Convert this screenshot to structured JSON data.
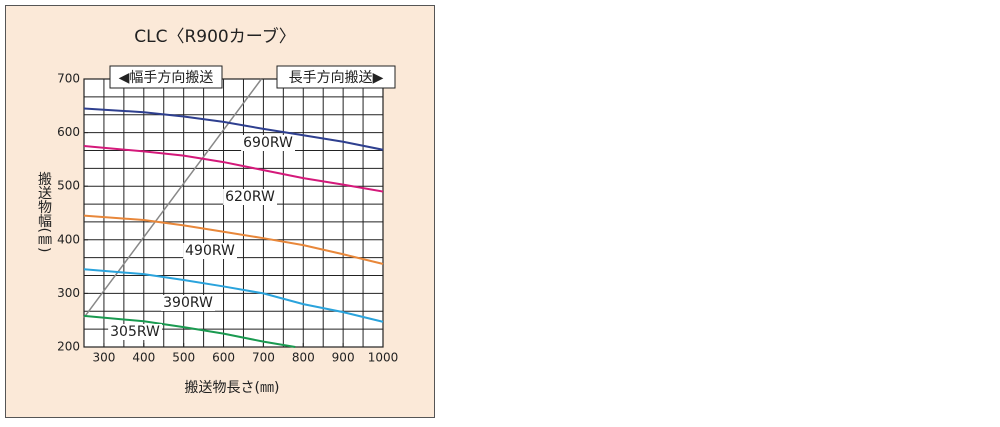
{
  "chart_data": {
    "type": "line",
    "title": "CLC〈R900カーブ〉",
    "x_label": "搬送物長さ(㎜)",
    "y_label": "搬送物幅(㎜)",
    "annotations": [
      "◀幅手方向搬送",
      "長手方向搬送▶"
    ],
    "xlim": [
      250,
      1000
    ],
    "xticks": [
      300,
      400,
      500,
      600,
      700,
      800,
      900,
      1000
    ],
    "ylim": [
      200,
      700
    ],
    "yticks": [
      200,
      300,
      400,
      500,
      600,
      700
    ],
    "grid": true,
    "x_minor_divisions": 2,
    "y_minor_divisions": 3,
    "background": "#fbe9d8",
    "boundary_line": {
      "color": "#888888",
      "x": [
        250,
        695
      ],
      "values": [
        255,
        700
      ]
    },
    "series": [
      {
        "name": "690RW",
        "color": "#2e3f8f",
        "x": [
          250,
          400,
          500,
          600,
          700,
          800,
          900,
          1000
        ],
        "values": [
          645,
          638,
          630,
          620,
          607,
          595,
          583,
          568
        ]
      },
      {
        "name": "620RW",
        "color": "#d4197a",
        "x": [
          250,
          400,
          500,
          600,
          700,
          800,
          900,
          1000
        ],
        "values": [
          575,
          565,
          557,
          545,
          530,
          515,
          503,
          490
        ]
      },
      {
        "name": "490RW",
        "color": "#e8873a",
        "x": [
          250,
          400,
          500,
          600,
          700,
          800,
          900,
          1000
        ],
        "values": [
          445,
          437,
          427,
          415,
          403,
          390,
          373,
          355
        ]
      },
      {
        "name": "390RW",
        "color": "#2aa3dc",
        "x": [
          250,
          400,
          500,
          600,
          700,
          800,
          900,
          1000
        ],
        "values": [
          345,
          336,
          325,
          313,
          300,
          280,
          265,
          247
        ]
      },
      {
        "name": "305RW",
        "color": "#1a9a50",
        "x": [
          250,
          400,
          500,
          600,
          700,
          780
        ],
        "values": [
          258,
          248,
          237,
          225,
          210,
          200
        ]
      }
    ]
  }
}
